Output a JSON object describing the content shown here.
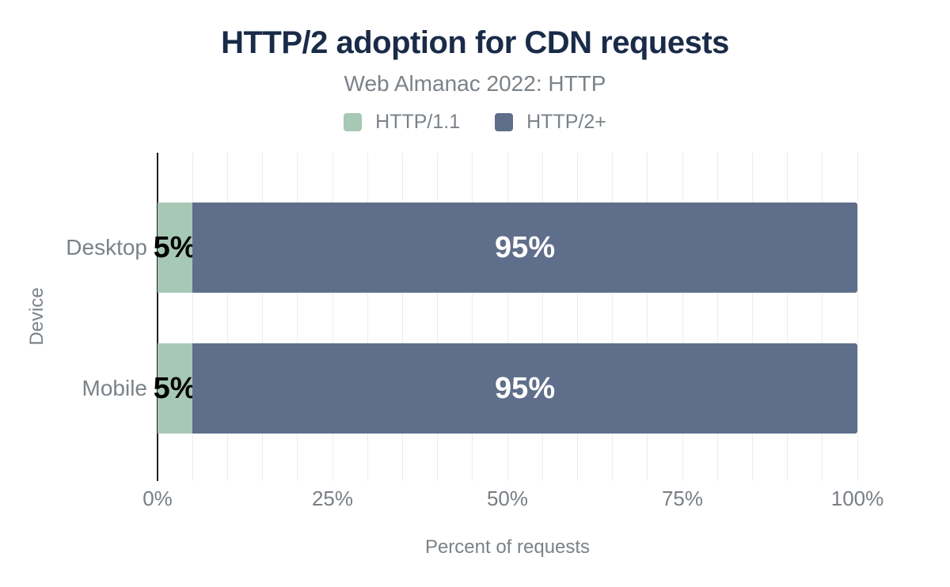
{
  "header": {
    "title": "HTTP/2 adoption for CDN requests",
    "subtitle": "Web Almanac 2022: HTTP"
  },
  "legend": [
    {
      "label": "HTTP/1.1",
      "color": "#a6c8b5"
    },
    {
      "label": "HTTP/2+",
      "color": "#5f6e8a"
    }
  ],
  "chart_data": {
    "type": "bar",
    "orientation": "horizontal",
    "stacked": true,
    "title": "HTTP/2 adoption for CDN requests",
    "subtitle": "Web Almanac 2022: HTTP",
    "categories": [
      "Desktop",
      "Mobile"
    ],
    "series": [
      {
        "name": "HTTP/1.1",
        "color": "#a6c8b5",
        "values": [
          5,
          5
        ],
        "data_labels": [
          "5%",
          "5%"
        ],
        "label_color": "#000000"
      },
      {
        "name": "HTTP/2+",
        "color": "#5f6e8a",
        "values": [
          95,
          95
        ],
        "data_labels": [
          "95%",
          "95%"
        ],
        "label_color": "#ffffff"
      }
    ],
    "xlabel": "Percent of requests",
    "ylabel": "Device",
    "xlim": [
      0,
      100
    ],
    "x_ticks": [
      {
        "value": 0,
        "label": "0%"
      },
      {
        "value": 25,
        "label": "25%"
      },
      {
        "value": 50,
        "label": "50%"
      },
      {
        "value": 75,
        "label": "75%"
      },
      {
        "value": 100,
        "label": "100%"
      }
    ],
    "gridline_step_pct": 5,
    "grid": true,
    "legend_position": "top"
  },
  "colors": {
    "title": "#1a2b49",
    "text_gray": "#7b8288",
    "gridline": "#ececec",
    "axis_line": "#1f1f1f",
    "background": "#ffffff"
  }
}
